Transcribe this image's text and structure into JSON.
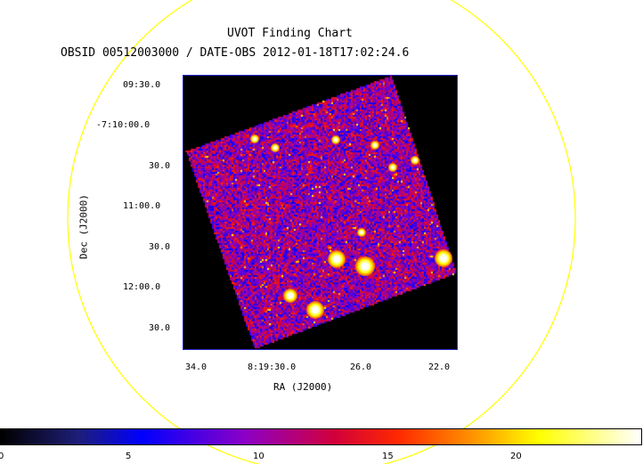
{
  "header": {
    "title": "UVOT Finding Chart",
    "subtitle": "OBSID 00512003000 / DATE-OBS 2012-01-18T17:02:24.6"
  },
  "axes": {
    "xlabel": "RA (J2000)",
    "ylabel": "Dec (J2000)",
    "dec_ticks": [
      "09:30.0",
      "-7:10:00.0",
      "30.0",
      "11:00.0",
      "30.0",
      "12:00.0",
      "30.0"
    ],
    "ra_ticks": [
      "34.0",
      "8:19:30.0",
      "26.0",
      "22.0"
    ]
  },
  "colorbar": {
    "ticks": [
      "0",
      "5",
      "10",
      "15",
      "20"
    ],
    "range": [
      0,
      25
    ]
  },
  "colors": {
    "circle": "#ffff00",
    "frame_border": "#2a2ad0",
    "background": "#000000"
  }
}
